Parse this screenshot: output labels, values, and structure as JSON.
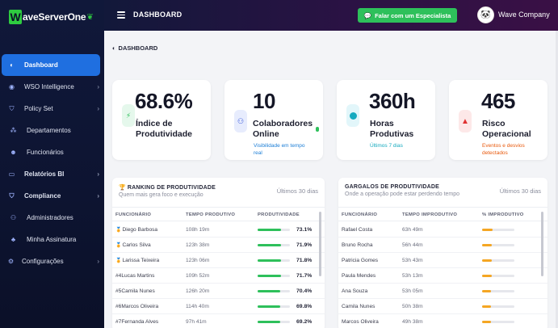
{
  "brand": {
    "logo_letter": "W",
    "logo_text": "aveServerOn",
    "logo_leaf": "e"
  },
  "sidebar": {
    "items": [
      {
        "label": "Dashboard",
        "icon": "dashboard-gauge-icon",
        "glyph": "◐",
        "chevron": false
      },
      {
        "label": "WSO Intelligence",
        "icon": "eye-icon",
        "glyph": "◉",
        "chevron": true
      },
      {
        "label": "Policy Set",
        "icon": "shield-icon",
        "glyph": "⛉",
        "chevron": true
      },
      {
        "label": "Departamentos",
        "icon": "sitemap-icon",
        "glyph": "⁂",
        "chevron": false
      },
      {
        "label": "Funcionários",
        "icon": "user-icon",
        "glyph": "☻",
        "chevron": false
      },
      {
        "label": "Relatórios BI",
        "icon": "monitor-icon",
        "glyph": "▭",
        "chevron": true
      },
      {
        "label": "Compliance",
        "icon": "shield-check-icon",
        "glyph": "⛉",
        "chevron": true
      },
      {
        "label": "Administradores",
        "icon": "users-icon",
        "glyph": "⚇",
        "chevron": false
      },
      {
        "label": "Minha Assinatura",
        "icon": "boxes-icon",
        "glyph": "♣",
        "chevron": false
      },
      {
        "label": "Configurações",
        "icon": "cogs-icon",
        "glyph": "⚙",
        "chevron": true
      }
    ]
  },
  "topbar": {
    "title": "DASHBOARD",
    "cta_label": "Falar com um Especialista",
    "company": "Wave Company"
  },
  "breadcrumb": "DASHBOARD",
  "kpis": [
    {
      "value": "68.6%",
      "label_1": "Índice de",
      "label_2": "Produtividade",
      "sub_1": "",
      "sub_2": "",
      "icon": "bolt-icon",
      "color": "#2ec05b"
    },
    {
      "value": "10",
      "label_1": "Colaboradores",
      "label_2": "Online",
      "sub_1": "Visibilidade em tempo",
      "sub_2": "real",
      "icon": "users-icon",
      "color": "#3b5bdb"
    },
    {
      "value": "360h",
      "label_1": "Horas",
      "label_2": "Produtivas",
      "sub_1": "Últimos 7 dias",
      "sub_2": "",
      "icon": "clock-icon",
      "color": "#15aabf"
    },
    {
      "value": "465",
      "label_1": "Risco",
      "label_2": "Operacional",
      "sub_1": "Eventos e desvios",
      "sub_2": "detectados",
      "icon": "warning-icon",
      "color": "#e03131"
    }
  ],
  "ranking": {
    "title": "RANKING DE PRODUTIVIDADE",
    "subtitle": "Quem mais gera foco e execução",
    "range": "Últimos 30 dias",
    "headers": [
      "FUNCIONÁRIO",
      "TEMPO PRODUTIVO",
      "PRODUTIVIDADE"
    ],
    "rows": [
      {
        "medal": "🏅",
        "name": "Diego Barbosa",
        "time": "108h 19m",
        "pct": "73.1%",
        "value": 73.1
      },
      {
        "medal": "🏅",
        "name": "Carlos Silva",
        "time": "123h 38m",
        "pct": "71.9%",
        "value": 71.9
      },
      {
        "medal": "🏅",
        "name": "Larissa Teixeira",
        "time": "123h 06m",
        "pct": "71.8%",
        "value": 71.8
      },
      {
        "medal": "",
        "name": "#4Lucas Martins",
        "time": "109h 52m",
        "pct": "71.7%",
        "value": 71.7
      },
      {
        "medal": "",
        "name": "#5Camila Nunes",
        "time": "126h 20m",
        "pct": "70.4%",
        "value": 70.4
      },
      {
        "medal": "",
        "name": "#6Marcos Oliveira",
        "time": "114h 40m",
        "pct": "69.8%",
        "value": 69.8
      },
      {
        "medal": "",
        "name": "#7Fernanda Alves",
        "time": "97h 41m",
        "pct": "69.2%",
        "value": 69.2
      }
    ]
  },
  "gargalos": {
    "title": "GARGALOS DE PRODUTIVIDADE",
    "subtitle": "Onde a operação pode estar perdendo tempo",
    "range": "Últimos 30 dias",
    "headers": [
      "FUNCIONÁRIO",
      "TEMPO IMPRODUTIVO",
      "% IMPRODUTIVO"
    ],
    "rows": [
      {
        "name": "Rafael Costa",
        "time": "63h 49m",
        "value": 32
      },
      {
        "name": "Bruno Rocha",
        "time": "56h 44m",
        "value": 30
      },
      {
        "name": "Patricia Gomes",
        "time": "53h 43m",
        "value": 29
      },
      {
        "name": "Paula Mendes",
        "time": "53h 13m",
        "value": 29
      },
      {
        "name": "Ana Souza",
        "time": "53h 05m",
        "value": 28
      },
      {
        "name": "Camila Nunes",
        "time": "50h 38m",
        "value": 28
      },
      {
        "name": "Marcos Oliveira",
        "time": "49h 38m",
        "value": 27
      }
    ]
  },
  "colors": {
    "accent": "#1f6fe0",
    "good": "#2ec05b",
    "warn": "#f5a623",
    "risk": "#e8590c"
  }
}
